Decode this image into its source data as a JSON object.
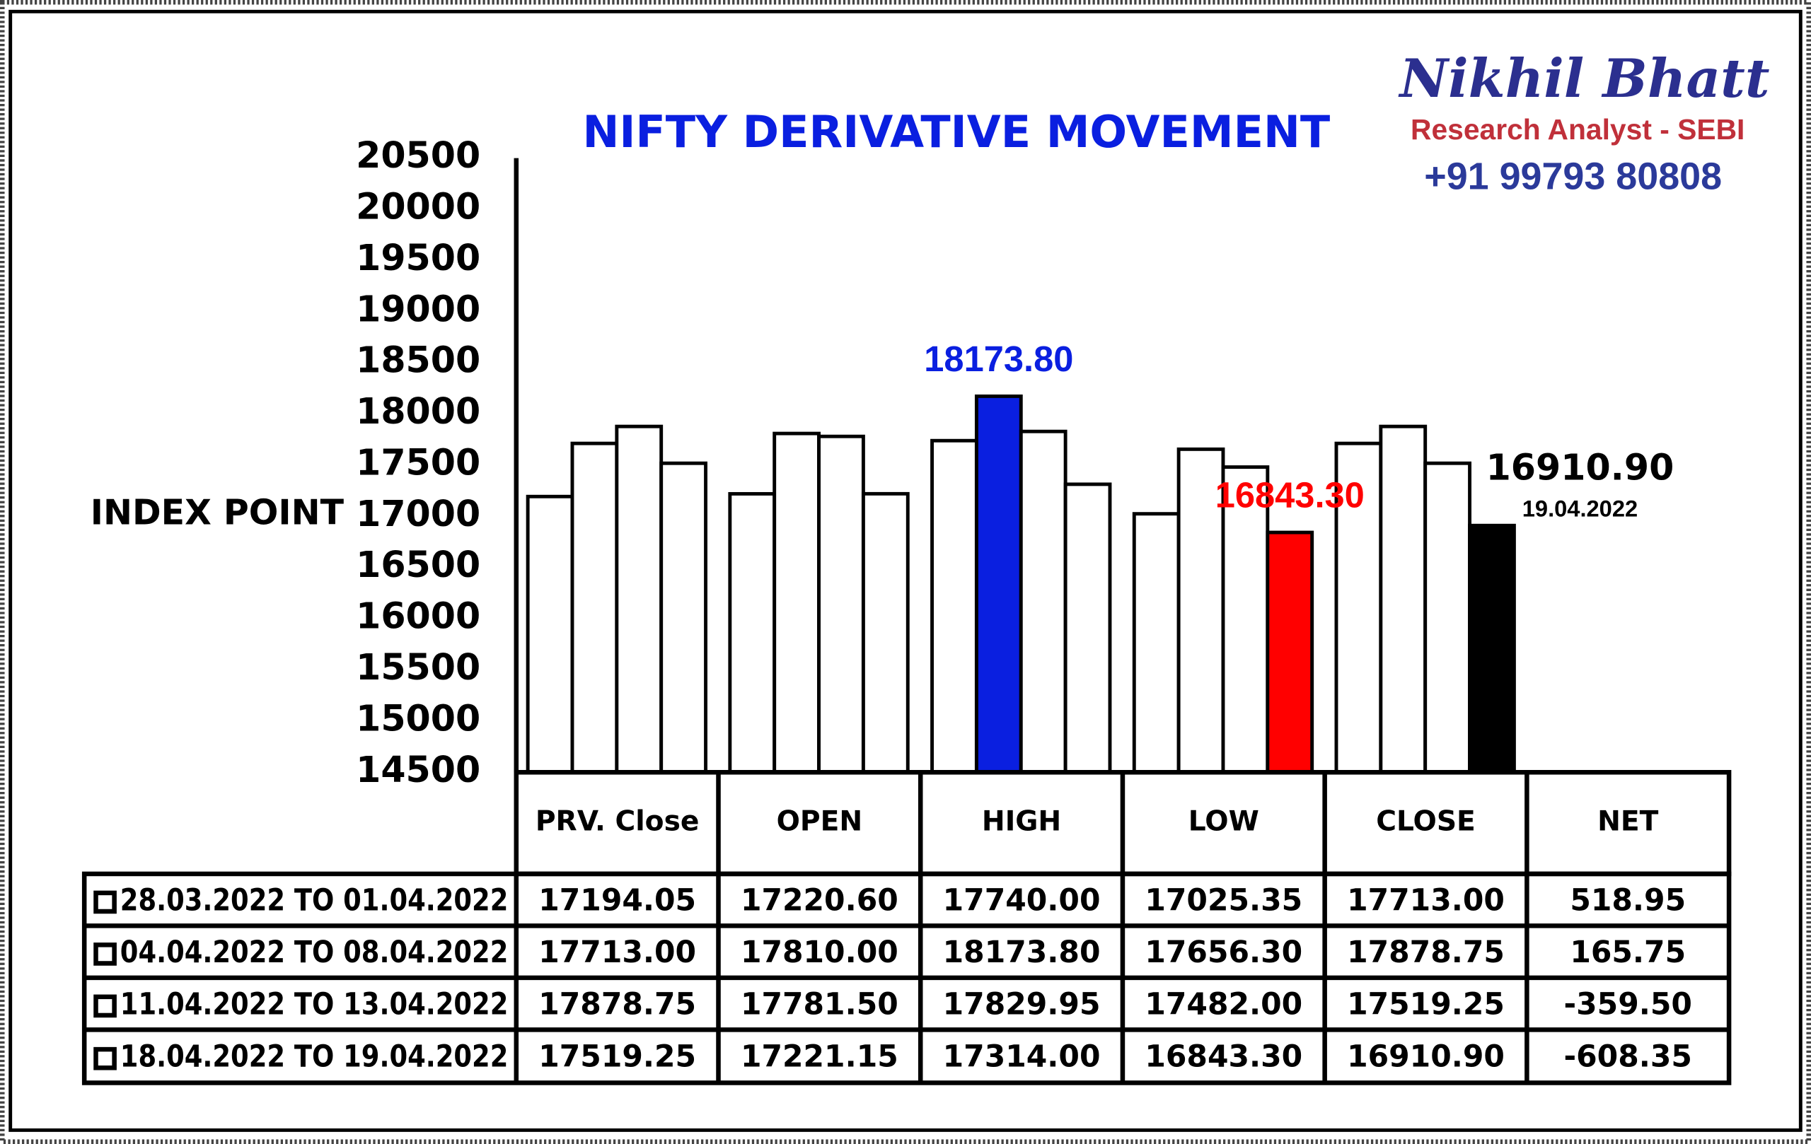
{
  "chart_data": {
    "type": "bar",
    "title": "NIFTY DERIVATIVE MOVEMENT",
    "y_label": "INDEX POINT",
    "brand": {
      "name": "Nikhil Bhatt",
      "role": "Research Analyst - SEBI",
      "phone": "+91 99793 80808"
    },
    "categories": [
      "PRV. Close",
      "OPEN",
      "HIGH",
      "LOW",
      "CLOSE"
    ],
    "net_header": "NET",
    "ylim": [
      14500,
      20500
    ],
    "yticks": [
      14500,
      15000,
      15500,
      16000,
      16500,
      17000,
      17500,
      18000,
      18500,
      19000,
      19500,
      20000,
      20500
    ],
    "annotation": "19.04.2022",
    "series": [
      {
        "name": "28.03.2022 TO 01.04.2022",
        "values": [
          17194.05,
          17220.6,
          17740,
          17025.35,
          17713
        ],
        "value_labels": [
          "17194.05",
          "17220.60",
          "17740.00",
          "17025.35",
          "17713.00"
        ],
        "colors": [
          "#ffffff",
          "#ffffff",
          "#ffffff",
          "#ffffff",
          "#ffffff"
        ],
        "net": "518.95"
      },
      {
        "name": "04.04.2022 TO 08.04.2022",
        "values": [
          17713,
          17810,
          18173.8,
          17656.3,
          17878.75
        ],
        "value_labels": [
          "17713.00",
          "17810.00",
          "18173.80",
          "17656.30",
          "17878.75"
        ],
        "colors": [
          "#ffffff",
          "#ffffff",
          "#0a1fe0",
          "#ffffff",
          "#ffffff"
        ],
        "net": "165.75"
      },
      {
        "name": "11.04.2022 TO 13.04.2022",
        "values": [
          17878.75,
          17781.5,
          17829.95,
          17482,
          17519.25
        ],
        "value_labels": [
          "17878.75",
          "17781.50",
          "17829.95",
          "17482.00",
          "17519.25"
        ],
        "colors": [
          "#ffffff",
          "#ffffff",
          "#ffffff",
          "#ffffff",
          "#ffffff"
        ],
        "net": "-359.50"
      },
      {
        "name": "18.04.2022 TO 19.04.2022",
        "values": [
          17519.25,
          17221.15,
          17314,
          16843.3,
          16910.9
        ],
        "value_labels": [
          "17519.25",
          "17221.15",
          "17314.00",
          "16843.30",
          "16910.90"
        ],
        "colors": [
          "#ffffff",
          "#ffffff",
          "#ffffff",
          "#ff0000",
          "#000000"
        ],
        "net": "-608.35"
      }
    ]
  }
}
